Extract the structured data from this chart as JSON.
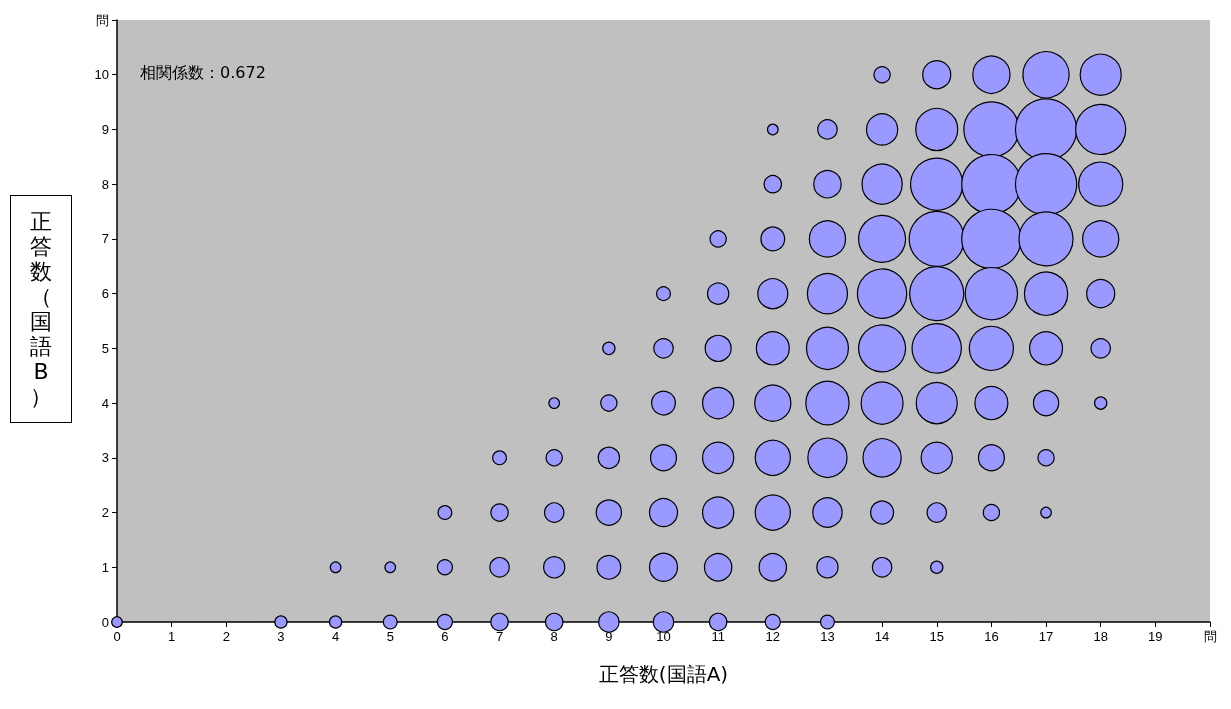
{
  "chart_data": {
    "type": "bubble",
    "xlabel": "正答数(国語A)",
    "ylabel": "正答数（国語B）",
    "annotations": [
      "相関係数：0.672"
    ],
    "xlim": [
      0,
      20
    ],
    "xticks": [
      0,
      1,
      2,
      3,
      4,
      5,
      6,
      7,
      8,
      9,
      10,
      11,
      12,
      13,
      14,
      15,
      16,
      17,
      18,
      19,
      {
        "value": 20,
        "label": "問"
      }
    ],
    "ylim": [
      0,
      11
    ],
    "yticks": [
      0,
      1,
      2,
      3,
      4,
      5,
      6,
      7,
      8,
      9,
      10,
      {
        "value": 11,
        "label": "問"
      }
    ],
    "grid": false,
    "series": [
      {
        "color": "#9999ff",
        "x": [
          14,
          15,
          16,
          17,
          18,
          12,
          13,
          14,
          15,
          16,
          17,
          18,
          12,
          13,
          14,
          15,
          16,
          17,
          18,
          11,
          12,
          13,
          14,
          15,
          16,
          17,
          18,
          10,
          11,
          12,
          13,
          14,
          15,
          16,
          17,
          18,
          9,
          10,
          11,
          12,
          13,
          14,
          15,
          16,
          17,
          18,
          8,
          9,
          10,
          11,
          12,
          13,
          14,
          15,
          16,
          17,
          18,
          7,
          8,
          9,
          10,
          11,
          12,
          13,
          14,
          15,
          16,
          17,
          6,
          7,
          8,
          9,
          10,
          11,
          12,
          13,
          14,
          15,
          16,
          17,
          4,
          5,
          6,
          7,
          8,
          9,
          10,
          11,
          12,
          13,
          14,
          15,
          0,
          3,
          4,
          5,
          6,
          7,
          8,
          9,
          10,
          11,
          12,
          13
        ],
        "values": [
          10,
          10,
          10,
          10,
          10,
          9,
          9,
          9,
          9,
          9,
          9,
          9,
          8,
          8,
          8,
          8,
          8,
          8,
          8,
          7,
          7,
          7,
          7,
          7,
          7,
          7,
          7,
          6,
          6,
          6,
          6,
          6,
          6,
          6,
          6,
          6,
          5,
          5,
          5,
          5,
          5,
          5,
          5,
          5,
          5,
          5,
          4,
          4,
          4,
          4,
          4,
          4,
          4,
          4,
          4,
          4,
          4,
          3,
          3,
          3,
          3,
          3,
          3,
          3,
          3,
          3,
          3,
          3,
          2,
          2,
          2,
          2,
          2,
          2,
          2,
          2,
          2,
          2,
          2,
          2,
          1,
          1,
          1,
          1,
          1,
          1,
          1,
          1,
          1,
          1,
          1,
          1,
          0,
          0,
          0,
          0,
          0,
          0,
          0,
          0,
          0,
          0,
          0,
          0
        ],
        "sizes": [
          0.07,
          0.21,
          0.37,
          0.57,
          0.45,
          0.03,
          0.1,
          0.26,
          0.47,
          0.81,
          1,
          0.67,
          0.08,
          0.2,
          0.43,
          0.73,
          0.94,
          1,
          0.52,
          0.07,
          0.15,
          0.35,
          0.59,
          0.81,
          0.94,
          0.78,
          0.35,
          0.05,
          0.12,
          0.24,
          0.43,
          0.65,
          0.78,
          0.73,
          0.5,
          0.21,
          0.04,
          0.1,
          0.18,
          0.29,
          0.47,
          0.59,
          0.65,
          0.52,
          0.29,
          0.1,
          0.03,
          0.07,
          0.15,
          0.26,
          0.35,
          0.5,
          0.47,
          0.45,
          0.29,
          0.17,
          0.04,
          0.05,
          0.07,
          0.12,
          0.18,
          0.26,
          0.33,
          0.41,
          0.39,
          0.26,
          0.18,
          0.07,
          0.05,
          0.08,
          0.1,
          0.17,
          0.21,
          0.26,
          0.33,
          0.23,
          0.14,
          0.1,
          0.07,
          0.03,
          0.03,
          0.03,
          0.06,
          0.1,
          0.12,
          0.15,
          0.21,
          0.2,
          0.2,
          0.12,
          0.1,
          0.04,
          0.03,
          0.04,
          0.04,
          0.05,
          0.06,
          0.08,
          0.08,
          0.11,
          0.11,
          0.08,
          0.06,
          0.05
        ]
      }
    ]
  }
}
